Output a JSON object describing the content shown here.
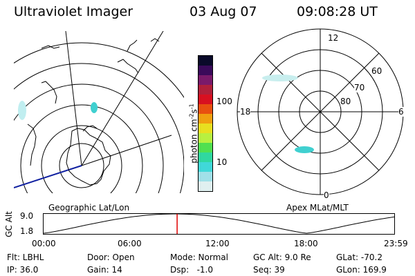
{
  "header": {
    "instrument": "Ultraviolet Imager",
    "date": "03 Aug 07",
    "time": "09:08:28 UT"
  },
  "colorbar": {
    "label": "photon cm",
    "label_exp1": "-2",
    "label_mid": "s",
    "label_exp2": "-1",
    "ticks": [
      "100",
      "10"
    ],
    "colors_top_to_bottom": [
      "#0a0a2a",
      "#3a0a5a",
      "#7a1a6a",
      "#b0203a",
      "#d81020",
      "#e85010",
      "#f0a010",
      "#e8e020",
      "#b8f040",
      "#50e050",
      "#30d8a0",
      "#40d8d8",
      "#a0e0e8",
      "#e0f0f0"
    ]
  },
  "left_map": {
    "label": "Geographic Lat/Lon"
  },
  "right_map": {
    "label": "Apex MLat/MLT",
    "mlt_labels": {
      "top": "12",
      "left": "18",
      "right": "6",
      "bottom": "0"
    },
    "lat_labels": [
      "60",
      "70",
      "80"
    ]
  },
  "altitude_plot": {
    "ylabel": "GC Alt",
    "y_ticks": [
      "9.0",
      "1.8"
    ],
    "x_ticks": [
      "00:00",
      "06:00",
      "12:00",
      "18:00",
      "23:59"
    ],
    "marker_time_hours": 9.14,
    "marker_color": "#e00000"
  },
  "info": {
    "row1": [
      "Flt: LBHL",
      "Door: Open",
      "Mode: Normal",
      "GC Alt: 9.0 Re",
      "GLat: -70.2"
    ],
    "row2": [
      "IP: 36.0",
      "Gain: 14",
      "Dsp:   -1.0",
      "Seq: 39",
      "GLon: 169.9"
    ]
  }
}
